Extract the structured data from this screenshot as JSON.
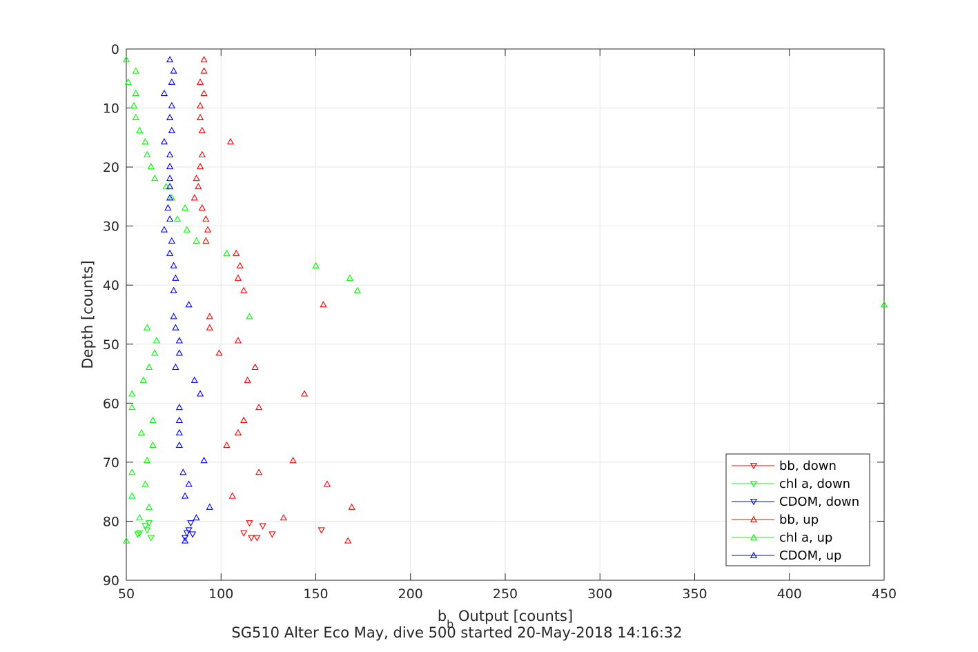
{
  "chart_data": {
    "type": "scatter",
    "title": "SG510 Alter Eco May, dive 500 started 20-May-2018 14:16:32",
    "xlabel_main": "b",
    "xlabel_sub": "b",
    "xlabel_rest": " Output [counts]",
    "ylabel": "Depth [counts]",
    "xlim": [
      50,
      450
    ],
    "ylim": [
      0,
      90
    ],
    "y_reversed": true,
    "grid": true,
    "legend_position": "bottom-right",
    "xticks": [
      50,
      100,
      150,
      200,
      250,
      300,
      350,
      400,
      450
    ],
    "yticks": [
      0,
      10,
      20,
      30,
      40,
      50,
      60,
      70,
      80,
      90
    ],
    "colors": {
      "bb": "#ff0000",
      "chl": "#00ff00",
      "cdom": "#0000ff",
      "grid": "#e6e6e6",
      "axis": "#262626"
    },
    "series": [
      {
        "name": "bb, down",
        "marker": "triangle-down",
        "color": "#ff0000",
        "x": [
          115,
          116,
          127,
          153,
          112,
          119,
          122
        ],
        "y": [
          80.3,
          82.8,
          82.2,
          81.5,
          82.0,
          82.8,
          80.8
        ]
      },
      {
        "name": "chl a, down",
        "marker": "triangle-down",
        "color": "#00ff00",
        "x": [
          62,
          63,
          56,
          57,
          61,
          60
        ],
        "y": [
          80.3,
          82.8,
          82.2,
          82.0,
          81.5,
          80.8
        ]
      },
      {
        "name": "CDOM, down",
        "marker": "triangle-down",
        "color": "#0000ff",
        "x": [
          84,
          85,
          83,
          82,
          81
        ],
        "y": [
          80.3,
          82.2,
          81.5,
          82.0,
          82.8
        ]
      },
      {
        "name": "bb, up",
        "marker": "triangle-up",
        "color": "#ff0000",
        "x": [
          91,
          91,
          89,
          91,
          89,
          89,
          90,
          105,
          90,
          89,
          87,
          88,
          86,
          90,
          92,
          93,
          92,
          108,
          110,
          109,
          112,
          154,
          94,
          94,
          109,
          99,
          118,
          114,
          144,
          120,
          112,
          109,
          103,
          138,
          120,
          156,
          106,
          169,
          133,
          167
        ],
        "y": [
          1.8,
          3.7,
          5.6,
          7.5,
          9.6,
          11.6,
          13.8,
          15.7,
          17.9,
          19.9,
          21.9,
          23.3,
          25.2,
          26.9,
          28.8,
          30.6,
          32.5,
          34.6,
          36.7,
          38.8,
          40.9,
          43.3,
          45.3,
          47.2,
          49.4,
          51.5,
          53.9,
          56.1,
          58.4,
          60.7,
          62.9,
          65.0,
          67.1,
          69.7,
          71.7,
          73.7,
          75.7,
          77.6,
          79.4,
          83.3
        ]
      },
      {
        "name": "chl a, up",
        "marker": "triangle-up",
        "color": "#00ff00",
        "x": [
          50,
          55,
          51,
          55,
          54,
          55,
          57,
          60,
          61,
          63,
          65,
          71,
          74,
          81,
          77,
          82,
          87,
          103,
          150,
          168,
          172,
          450,
          115,
          61,
          66,
          65,
          62,
          59,
          53,
          53,
          64,
          58,
          64,
          61,
          53,
          60,
          53,
          62,
          57,
          50
        ],
        "y": [
          1.8,
          3.7,
          5.6,
          7.5,
          9.6,
          11.6,
          13.8,
          15.7,
          17.9,
          19.9,
          21.9,
          23.3,
          25.2,
          26.9,
          28.8,
          30.6,
          32.5,
          34.6,
          36.7,
          38.8,
          40.9,
          43.3,
          45.3,
          47.2,
          49.4,
          51.5,
          53.9,
          56.1,
          58.4,
          60.7,
          62.9,
          65.0,
          67.1,
          69.7,
          71.7,
          73.7,
          75.7,
          77.6,
          79.4,
          83.3
        ]
      },
      {
        "name": "CDOM, up",
        "marker": "triangle-up",
        "color": "#0000ff",
        "x": [
          73,
          75,
          74,
          70,
          74,
          73,
          74,
          70,
          73,
          73,
          73,
          73,
          73,
          72,
          73,
          70,
          74,
          73,
          75,
          76,
          75,
          83,
          75,
          76,
          78,
          78,
          76,
          86,
          89,
          78,
          78,
          78,
          78,
          91,
          80,
          83,
          81,
          94,
          87,
          81
        ],
        "y": [
          1.8,
          3.7,
          5.6,
          7.5,
          9.6,
          11.6,
          13.8,
          15.7,
          17.9,
          19.9,
          21.9,
          23.3,
          25.2,
          26.9,
          28.8,
          30.6,
          32.5,
          34.6,
          36.7,
          38.8,
          40.9,
          43.3,
          45.3,
          47.2,
          49.4,
          51.5,
          53.9,
          56.1,
          58.4,
          60.7,
          62.9,
          65.0,
          67.1,
          69.7,
          71.7,
          73.7,
          75.7,
          77.6,
          79.4,
          83.3
        ]
      }
    ]
  }
}
